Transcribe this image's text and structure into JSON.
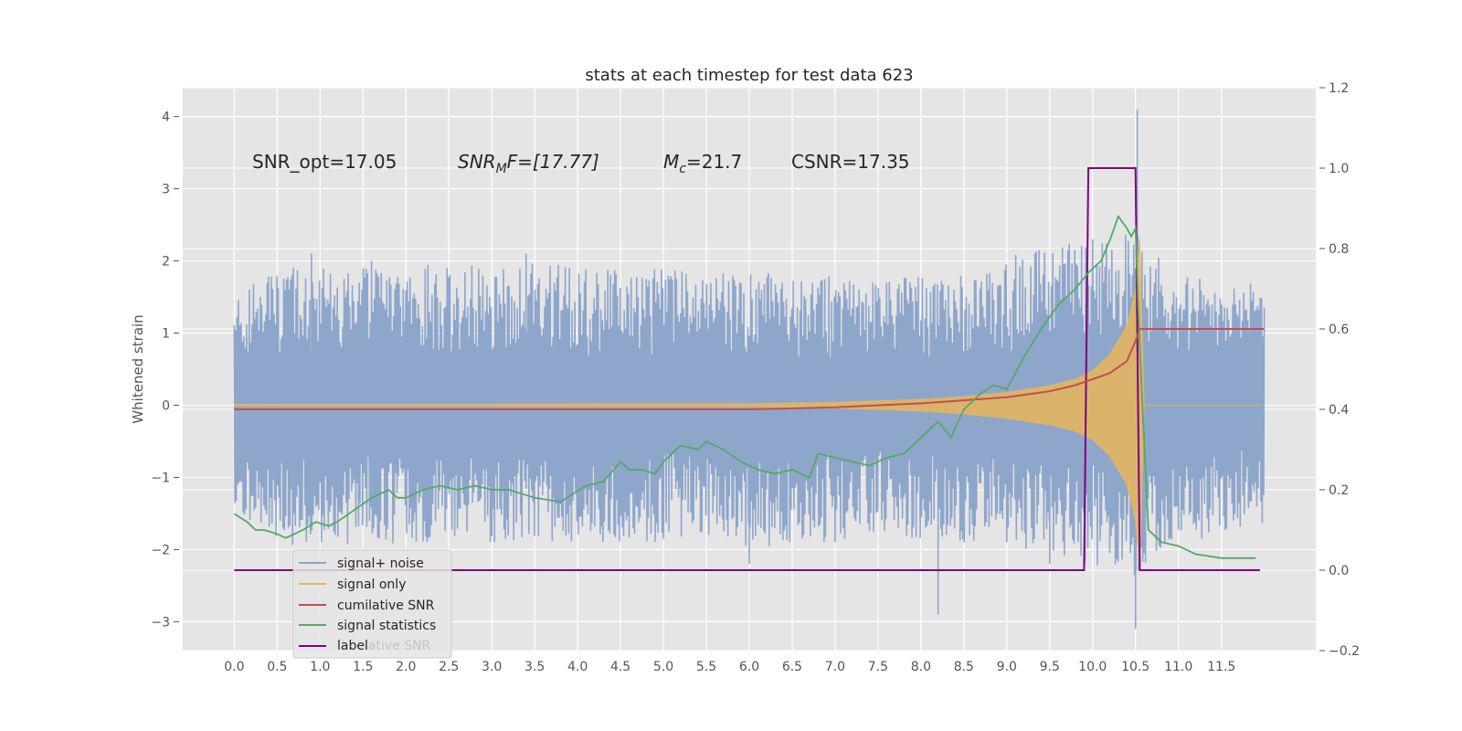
{
  "chart_data": {
    "type": "line",
    "title": "stats at each timestep for test data 623",
    "ylabel": "Whitened strain",
    "xlabel": "",
    "xlim": [
      -0.6,
      12.6
    ],
    "ylim": [
      -3.4,
      4.4
    ],
    "y2lim": [
      -0.2,
      1.2
    ],
    "grid": true,
    "legend_position": "lower-left",
    "x_ticks": [
      "0.0",
      "0.5",
      "1.0",
      "1.5",
      "2.0",
      "2.5",
      "3.0",
      "3.5",
      "4.0",
      "4.5",
      "5.0",
      "5.5",
      "6.0",
      "6.5",
      "7.0",
      "7.5",
      "8.0",
      "8.5",
      "9.0",
      "9.5",
      "10.0",
      "10.5",
      "11.0",
      "11.5"
    ],
    "y_ticks": [
      "4",
      "3",
      "2",
      "1",
      "0",
      "−1",
      "−2",
      "−3"
    ],
    "y2_ticks": [
      "1.2",
      "1.0",
      "0.8",
      "0.6",
      "0.4",
      "0.2",
      "0.0",
      "−0.2"
    ],
    "annotations": {
      "snr_opt": "SNR_opt=17.05",
      "snr_mf_main": "SNR",
      "snr_mf_sub": "M",
      "snr_mf_tail": "F=[17.77]",
      "mc_main": "M",
      "mc_sub": "c",
      "mc_tail": "=21.7",
      "csnr": "CSNR=17.35"
    },
    "legend": [
      "signal+ noise",
      "signal only",
      "cumilative SNR",
      "signal statistics",
      "label"
    ],
    "legend_ghost": "lative SNR",
    "colors": {
      "background": "#e5e5e5",
      "grid": "#ffffff",
      "noise": "#8fa6cb",
      "signal": "#e8b65a",
      "cumulative_snr": "#c44e52",
      "statistics": "#55a868",
      "label": "#800080"
    },
    "series": [
      {
        "name": "signal+ noise",
        "axis": "left",
        "envelope_x": [
          0.0,
          0.5,
          1.0,
          1.5,
          2.0,
          2.5,
          3.0,
          3.5,
          4.0,
          4.5,
          5.0,
          5.5,
          6.0,
          6.5,
          7.0,
          7.5,
          8.0,
          8.5,
          9.0,
          9.5,
          10.0,
          10.5,
          11.0,
          11.5,
          12.0
        ],
        "envelope_upper": [
          1.5,
          1.9,
          2.0,
          1.9,
          1.9,
          2.0,
          1.9,
          2.0,
          1.9,
          1.9,
          1.9,
          1.8,
          1.9,
          1.8,
          1.8,
          1.8,
          1.8,
          1.9,
          2.1,
          2.2,
          2.3,
          2.4,
          1.8,
          1.8,
          1.7
        ],
        "envelope_lower": [
          -1.5,
          -1.9,
          -2.0,
          -2.0,
          -1.9,
          -1.9,
          -1.9,
          -1.9,
          -1.9,
          -1.9,
          -1.9,
          -1.8,
          -2.0,
          -1.9,
          -1.9,
          -1.8,
          -1.9,
          -1.9,
          -1.9,
          -2.1,
          -2.2,
          -2.4,
          -1.9,
          -1.8,
          -1.7
        ],
        "spikes": [
          [
            0.9,
            2.1
          ],
          [
            1.6,
            2.0
          ],
          [
            3.4,
            2.1
          ],
          [
            6.0,
            -2.2
          ],
          [
            8.2,
            -2.9
          ],
          [
            9.5,
            -2.2
          ],
          [
            10.0,
            2.3
          ],
          [
            10.52,
            4.1
          ],
          [
            10.5,
            -3.1
          ]
        ]
      },
      {
        "name": "signal only",
        "axis": "left",
        "x": [
          0.0,
          6.0,
          7.0,
          8.0,
          8.5,
          9.0,
          9.5,
          9.8,
          10.0,
          10.2,
          10.4,
          10.5,
          10.55,
          10.6,
          11.0,
          12.0
        ],
        "y_abs": [
          0.01,
          0.02,
          0.04,
          0.08,
          0.12,
          0.18,
          0.27,
          0.36,
          0.48,
          0.7,
          1.1,
          1.6,
          2.3,
          0.0,
          0.0,
          0.0
        ]
      },
      {
        "name": "cumilative SNR",
        "axis": "right",
        "x": [
          0.0,
          6.0,
          7.0,
          8.0,
          9.0,
          9.5,
          9.8,
          10.0,
          10.2,
          10.4,
          10.5,
          10.55,
          11.0,
          12.0
        ],
        "y": [
          0.4,
          0.4,
          0.405,
          0.415,
          0.43,
          0.445,
          0.46,
          0.475,
          0.49,
          0.52,
          0.57,
          0.6,
          0.6,
          0.6
        ]
      },
      {
        "name": "signal statistics",
        "axis": "right",
        "x": [
          0.0,
          0.15,
          0.25,
          0.35,
          0.5,
          0.6,
          0.8,
          0.95,
          1.1,
          1.2,
          1.4,
          1.6,
          1.8,
          1.9,
          2.0,
          2.2,
          2.4,
          2.6,
          2.8,
          3.0,
          3.2,
          3.5,
          3.8,
          4.1,
          4.3,
          4.5,
          4.6,
          4.75,
          4.9,
          5.0,
          5.2,
          5.4,
          5.5,
          5.7,
          5.9,
          6.1,
          6.3,
          6.5,
          6.7,
          6.8,
          7.0,
          7.2,
          7.4,
          7.6,
          7.8,
          8.0,
          8.1,
          8.2,
          8.35,
          8.5,
          8.7,
          8.85,
          9.0,
          9.2,
          9.4,
          9.6,
          9.8,
          9.95,
          10.1,
          10.2,
          10.3,
          10.4,
          10.45,
          10.5,
          10.55,
          10.65,
          10.8,
          11.0,
          11.2,
          11.5,
          11.9
        ],
        "y": [
          0.14,
          0.12,
          0.1,
          0.1,
          0.09,
          0.08,
          0.1,
          0.12,
          0.11,
          0.12,
          0.15,
          0.18,
          0.2,
          0.18,
          0.18,
          0.2,
          0.21,
          0.2,
          0.21,
          0.2,
          0.2,
          0.18,
          0.17,
          0.21,
          0.22,
          0.27,
          0.25,
          0.25,
          0.24,
          0.27,
          0.31,
          0.3,
          0.32,
          0.3,
          0.27,
          0.25,
          0.24,
          0.25,
          0.23,
          0.29,
          0.28,
          0.27,
          0.26,
          0.28,
          0.29,
          0.33,
          0.35,
          0.37,
          0.33,
          0.4,
          0.44,
          0.46,
          0.45,
          0.53,
          0.6,
          0.66,
          0.7,
          0.74,
          0.77,
          0.82,
          0.88,
          0.85,
          0.83,
          0.85,
          0.55,
          0.1,
          0.07,
          0.06,
          0.04,
          0.03,
          0.03
        ]
      },
      {
        "name": "label",
        "axis": "right",
        "x": [
          0.0,
          9.9,
          9.95,
          10.5,
          10.55,
          11.95
        ],
        "y": [
          0.0,
          0.0,
          1.0,
          1.0,
          0.0,
          0.0
        ]
      }
    ]
  }
}
